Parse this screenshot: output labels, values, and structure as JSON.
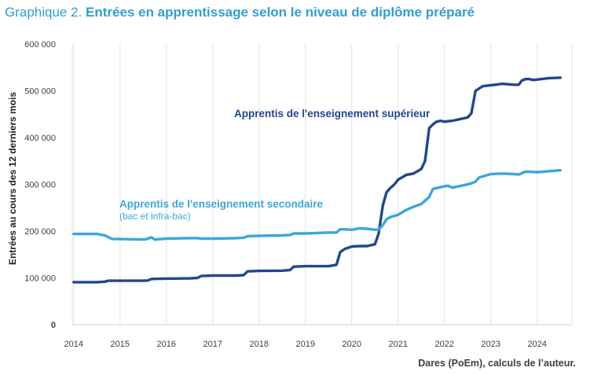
{
  "title_prefix": "Graphique 2.",
  "title_main": "Entrées en apprentissage selon le niveau de diplôme préparé",
  "source": "Dares (PoEm), calculs de l’auteur.",
  "chart_data": {
    "type": "line",
    "ylabel": "Entrées au cours des 12 derniers mois",
    "xlim": [
      2013.8,
      2024.75
    ],
    "ylim": [
      0,
      600000
    ],
    "yticks": [
      0,
      100000,
      200000,
      300000,
      400000,
      500000,
      600000
    ],
    "ytick_labels": [
      "0",
      "100 000",
      "200 000",
      "300 000",
      "400 000",
      "500 000",
      "600 000"
    ],
    "xticks": [
      2014,
      2015,
      2016,
      2017,
      2018,
      2019,
      2020,
      2021,
      2022,
      2023,
      2024
    ],
    "xtick_labels": [
      "2014",
      "2015",
      "2016",
      "2017",
      "2018",
      "2019",
      "2020",
      "2021",
      "2022",
      "2023",
      "2024"
    ],
    "grid": "vertical",
    "colors": {
      "superieur": "#23468f",
      "secondaire": "#3aa7dd"
    },
    "series": [
      {
        "key": "superieur",
        "name": "Apprentis de l'enseignement supérieur",
        "x": [
          2014.0,
          2014.5,
          2014.67,
          2014.75,
          2015.0,
          2015.5,
          2015.6,
          2015.67,
          2015.75,
          2016.0,
          2016.5,
          2016.67,
          2016.75,
          2017.0,
          2017.5,
          2017.67,
          2017.75,
          2018.0,
          2018.5,
          2018.67,
          2018.75,
          2019.0,
          2019.5,
          2019.67,
          2019.75,
          2019.85,
          2020.0,
          2020.17,
          2020.33,
          2020.5,
          2020.58,
          2020.67,
          2020.75,
          2020.83,
          2020.92,
          2021.0,
          2021.17,
          2021.33,
          2021.5,
          2021.58,
          2021.67,
          2021.75,
          2021.83,
          2021.92,
          2022.0,
          2022.08,
          2022.17,
          2022.5,
          2022.58,
          2022.67,
          2022.75,
          2022.83,
          2023.0,
          2023.25,
          2023.5,
          2023.6,
          2023.67,
          2023.75,
          2023.83,
          2023.92,
          2024.0,
          2024.25,
          2024.5
        ],
        "values": [
          91000,
          91000,
          92000,
          94000,
          94000,
          94000,
          94500,
          97500,
          98000,
          98500,
          99000,
          100000,
          104000,
          105000,
          105000,
          106000,
          114000,
          115000,
          115500,
          117000,
          124000,
          125000,
          125000,
          128000,
          155000,
          162000,
          167000,
          168000,
          168000,
          172000,
          195000,
          255000,
          283000,
          292000,
          300000,
          310000,
          320000,
          323000,
          333000,
          350000,
          420000,
          428000,
          434000,
          436000,
          434000,
          435000,
          436000,
          443000,
          452000,
          500000,
          505000,
          510000,
          512000,
          515000,
          513000,
          513000,
          522000,
          525000,
          525000,
          523000,
          524000,
          527000,
          528000
        ]
      },
      {
        "key": "secondaire",
        "name": "Apprentis de l'enseignement secondaire",
        "name_sub": "(bac et infra-bac)",
        "x": [
          2014.0,
          2014.5,
          2014.67,
          2014.75,
          2014.83,
          2015.0,
          2015.5,
          2015.58,
          2015.67,
          2015.75,
          2016.0,
          2016.5,
          2016.67,
          2016.75,
          2017.0,
          2017.5,
          2017.67,
          2017.75,
          2018.0,
          2018.5,
          2018.67,
          2018.75,
          2019.0,
          2019.5,
          2019.67,
          2019.75,
          2020.0,
          2020.17,
          2020.33,
          2020.5,
          2020.58,
          2020.67,
          2020.75,
          2020.83,
          2021.0,
          2021.17,
          2021.33,
          2021.5,
          2021.58,
          2021.67,
          2021.75,
          2021.83,
          2022.0,
          2022.08,
          2022.17,
          2022.5,
          2022.58,
          2022.67,
          2022.75,
          2022.83,
          2023.0,
          2023.25,
          2023.5,
          2023.6,
          2023.67,
          2023.75,
          2023.83,
          2024.0,
          2024.25,
          2024.5
        ],
        "values": [
          194000,
          194000,
          191000,
          187000,
          183000,
          183000,
          182000,
          183000,
          187000,
          182000,
          184000,
          185000,
          185000,
          184000,
          184000,
          185000,
          186000,
          189000,
          190000,
          191000,
          192000,
          195000,
          195000,
          197000,
          197000,
          204000,
          203000,
          206000,
          205000,
          203000,
          203000,
          213000,
          225000,
          230000,
          235000,
          245000,
          252000,
          258000,
          265000,
          273000,
          290000,
          292000,
          296000,
          297000,
          293000,
          300000,
          302000,
          306000,
          315000,
          317000,
          322000,
          323000,
          322000,
          321000,
          324000,
          327000,
          327000,
          326000,
          328000,
          330000
        ]
      }
    ],
    "annotations": [
      {
        "key": "superieur",
        "text": "Apprentis de l'enseignement supérieur"
      },
      {
        "key": "secondaire",
        "text": "Apprentis de l'enseignement secondaire",
        "sub": "(bac et infra-bac)"
      }
    ]
  }
}
